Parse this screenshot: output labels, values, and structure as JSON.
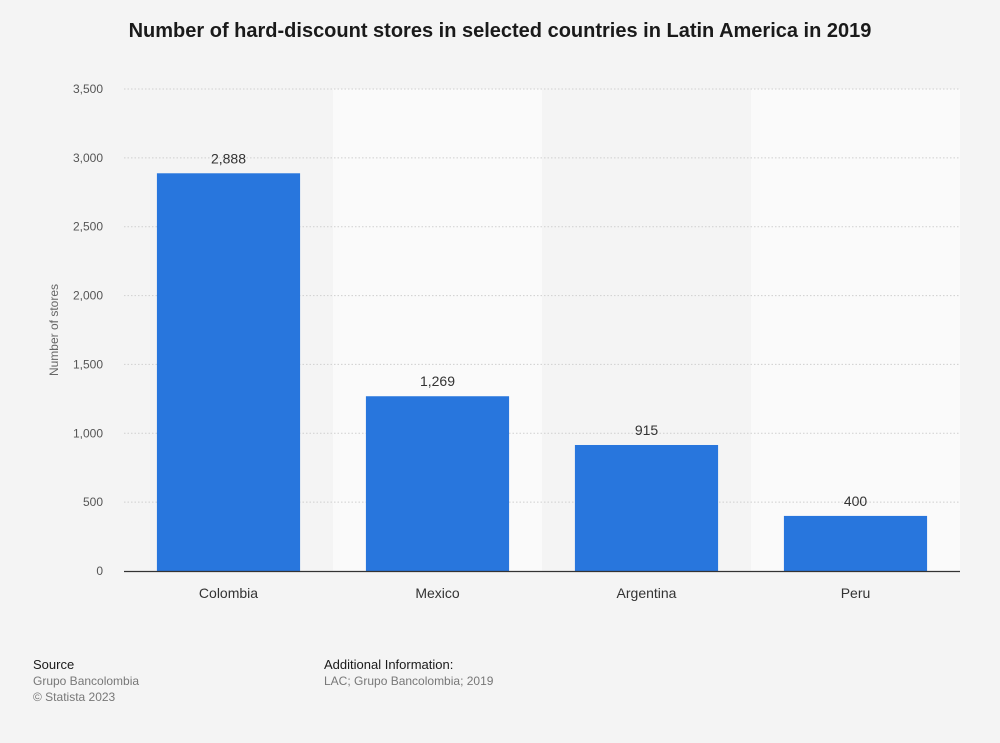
{
  "chart_data": {
    "type": "bar",
    "title": "Number of hard-discount stores in selected countries in Latin America in 2019",
    "xlabel": "",
    "ylabel": "Number of stores",
    "categories": [
      "Colombia",
      "Mexico",
      "Argentina",
      "Peru"
    ],
    "values": [
      2888,
      1269,
      915,
      400
    ],
    "value_labels": [
      "2,888",
      "1,269",
      "915",
      "400"
    ],
    "ylim": [
      0,
      3500
    ],
    "yticks": [
      0,
      500,
      1000,
      1500,
      2000,
      2500,
      3000,
      3500
    ],
    "ytick_labels": [
      "0",
      "500",
      "1,000",
      "1,500",
      "2,000",
      "2,500",
      "3,000",
      "3,500"
    ],
    "grid": true,
    "legend": "none",
    "bar_color": "#2876dd"
  },
  "footer": {
    "source_heading": "Source",
    "source_line1": "Grupo Bancolombia",
    "source_line2": "© Statista 2023",
    "info_heading": "Additional Information:",
    "info_line1": "LAC; Grupo Bancolombia; 2019"
  }
}
